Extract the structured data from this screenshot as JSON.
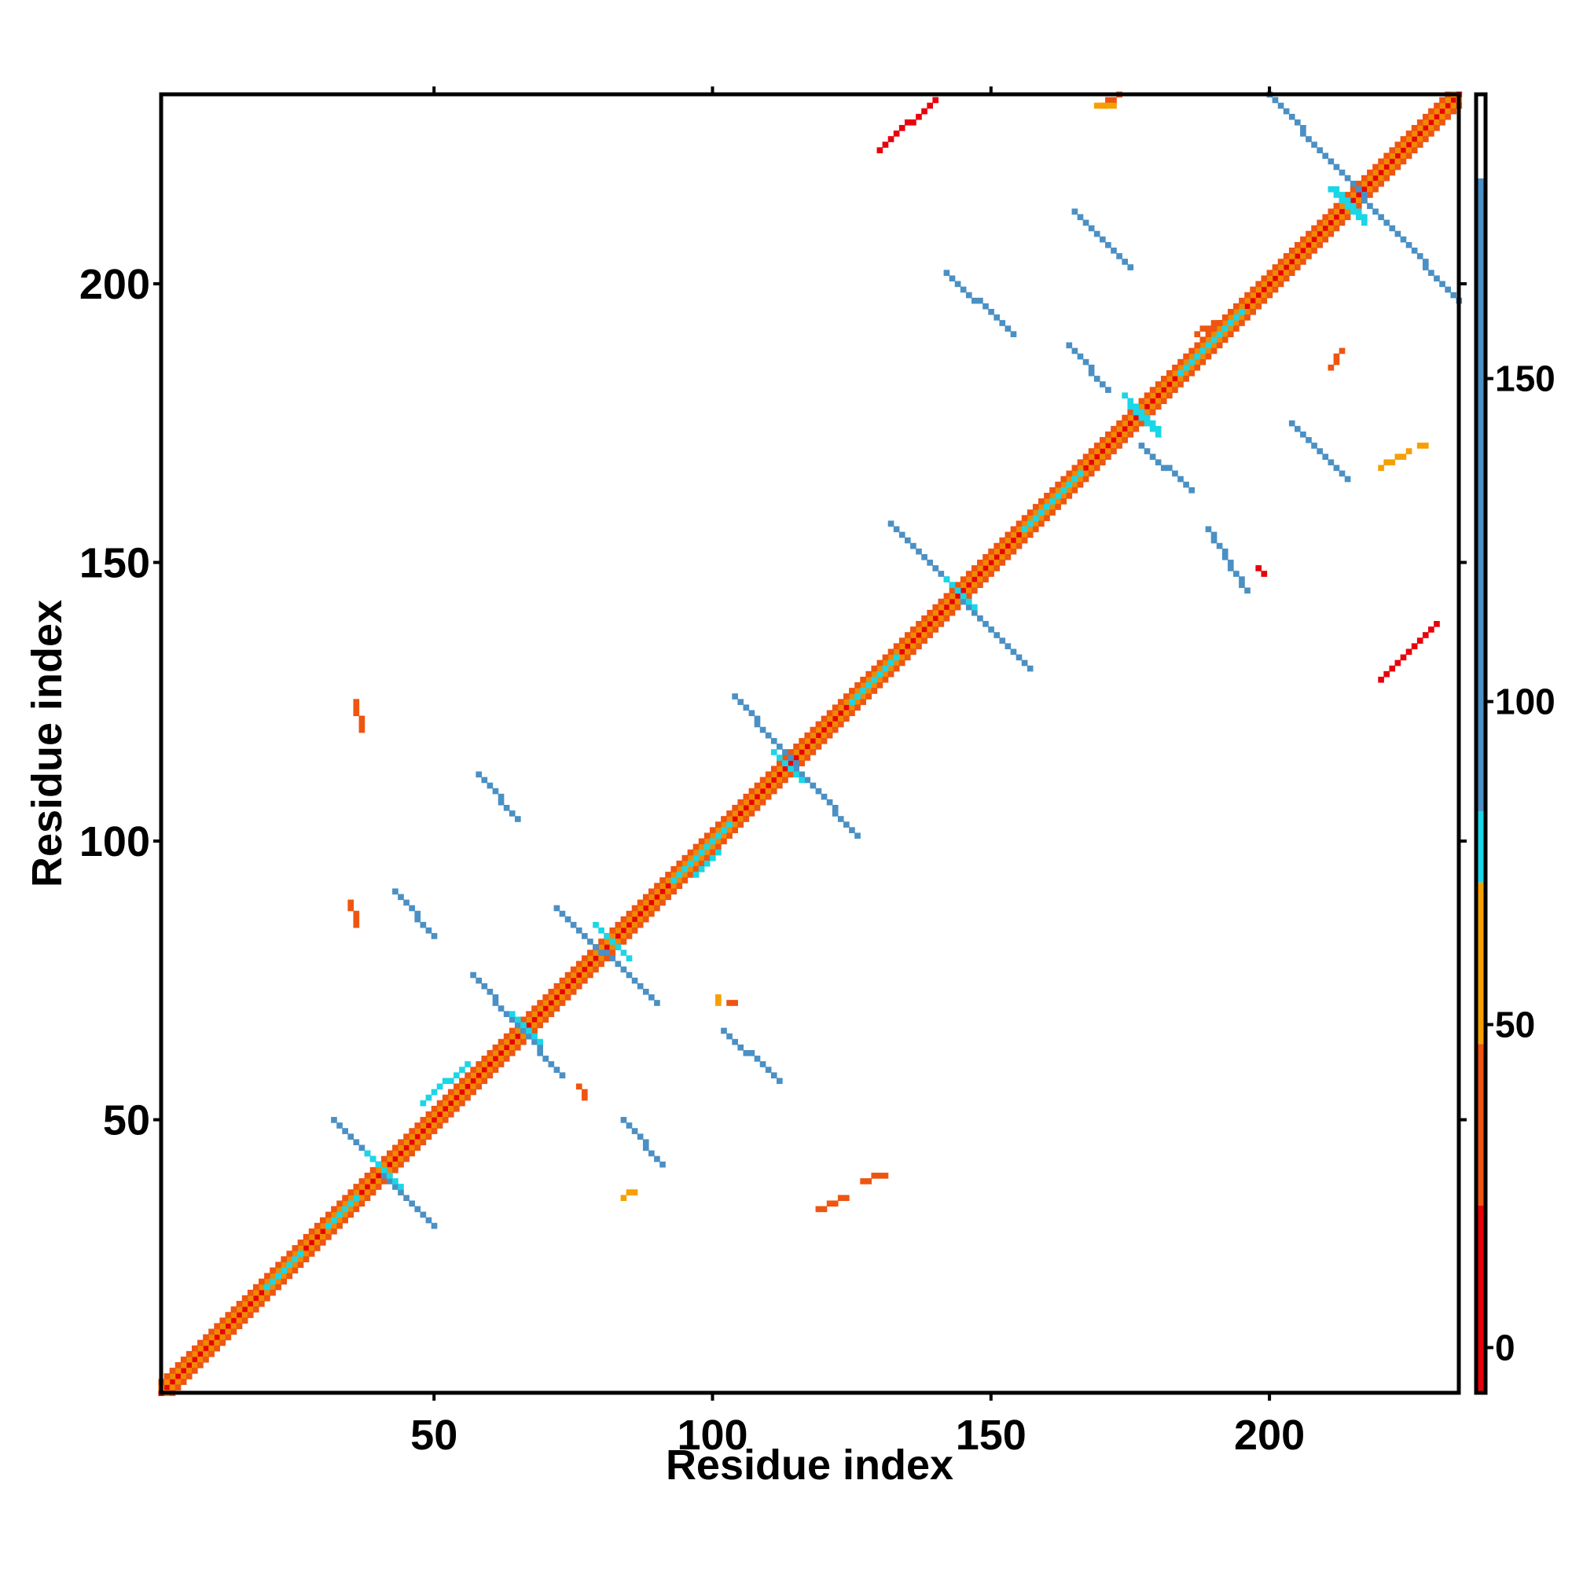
{
  "chart_data": {
    "type": "heatmap",
    "title": "",
    "xlabel": "Residue index",
    "ylabel": "Residue index",
    "xlim": [
      1,
      234
    ],
    "ylim": [
      1,
      234
    ],
    "x_ticks": [
      50,
      100,
      150,
      200
    ],
    "y_ticks": [
      50,
      100,
      150,
      200
    ],
    "colorbar": {
      "range": [
        -7,
        194
      ],
      "ticks": [
        0,
        50,
        100,
        150
      ],
      "color_bands": [
        {
          "from": -7,
          "to": 22,
          "color": "#e8000b"
        },
        {
          "from": 22,
          "to": 47,
          "color": "#ee5511"
        },
        {
          "from": 47,
          "to": 72,
          "color": "#f5a000"
        },
        {
          "from": 72,
          "to": 83,
          "color": "#1ad6e6"
        },
        {
          "from": 83,
          "to": 181,
          "color": "#4a90c4"
        },
        {
          "from": 181,
          "to": 194,
          "color": "#ffffff"
        }
      ]
    },
    "series": [
      {
        "color": "#e8000b",
        "segments": [
          [
            1,
            1,
            234,
            234
          ]
        ]
      },
      {
        "color": "#f08a00",
        "segments": [
          [
            2,
            1,
            234,
            233
          ],
          [
            1,
            2,
            233,
            234
          ]
        ]
      },
      {
        "color": "#ee5511",
        "segments": [
          [
            3,
            1,
            234,
            232
          ],
          [
            1,
            3,
            232,
            234
          ]
        ]
      },
      {
        "color": "#4a90c4",
        "segments": [
          [
            32,
            50,
            50,
            31
          ],
          [
            57,
            76,
            73,
            58
          ],
          [
            72,
            88,
            90,
            71
          ],
          [
            104,
            126,
            126,
            101
          ],
          [
            132,
            157,
            157,
            131
          ],
          [
            200,
            234,
            234,
            197
          ],
          [
            165,
            213,
            175,
            203
          ],
          [
            142,
            202,
            154,
            191
          ],
          [
            164,
            189,
            171,
            181
          ],
          [
            189,
            156,
            196,
            145
          ],
          [
            177,
            171,
            186,
            163
          ],
          [
            204,
            175,
            214,
            165
          ],
          [
            43,
            91,
            50,
            83
          ],
          [
            58,
            112,
            65,
            104
          ],
          [
            84,
            50,
            91,
            42
          ],
          [
            102,
            66,
            112,
            57
          ]
        ]
      },
      {
        "color": "#1ad6e6",
        "segments": [
          [
            38,
            44,
            44,
            38
          ],
          [
            64,
            69,
            69,
            64
          ],
          [
            79,
            85,
            85,
            79
          ],
          [
            111,
            116,
            116,
            111
          ],
          [
            142,
            147,
            147,
            142
          ],
          [
            211,
            217,
            217,
            211
          ],
          [
            174,
            180,
            180,
            174
          ],
          [
            175,
            178,
            180,
            173
          ],
          [
            212,
            217,
            217,
            212
          ],
          [
            31,
            31,
            36,
            36
          ],
          [
            93,
            93,
            103,
            103
          ],
          [
            125,
            125,
            133,
            133
          ],
          [
            156,
            156,
            166,
            166
          ],
          [
            184,
            184,
            195,
            195
          ],
          [
            20,
            20,
            26,
            26
          ],
          [
            97,
            94,
            101,
            98
          ],
          [
            48,
            53,
            56,
            60
          ]
        ]
      },
      {
        "color": "#e8000b",
        "segments": [
          [
            130,
            224,
            140,
            233
          ],
          [
            220,
            129,
            230,
            139
          ],
          [
            198,
            149,
            199,
            148
          ]
        ]
      },
      {
        "color": "#ee5511",
        "segments": [
          [
            170,
            232,
            173,
            234
          ],
          [
            35,
            89,
            36,
            85
          ],
          [
            36,
            125,
            37,
            120
          ],
          [
            76,
            56,
            77,
            54
          ],
          [
            103,
            71,
            104,
            71
          ],
          [
            119,
            34,
            124,
            36
          ],
          [
            127,
            39,
            131,
            40
          ],
          [
            187,
            191,
            191,
            193
          ],
          [
            211,
            185,
            213,
            188
          ]
        ]
      },
      {
        "color": "#f5a000",
        "segments": [
          [
            169,
            232,
            172,
            232
          ],
          [
            84,
            36,
            86,
            37
          ],
          [
            101,
            71,
            101,
            72
          ],
          [
            220,
            167,
            225,
            170
          ],
          [
            227,
            171,
            228,
            171
          ]
        ]
      }
    ]
  }
}
